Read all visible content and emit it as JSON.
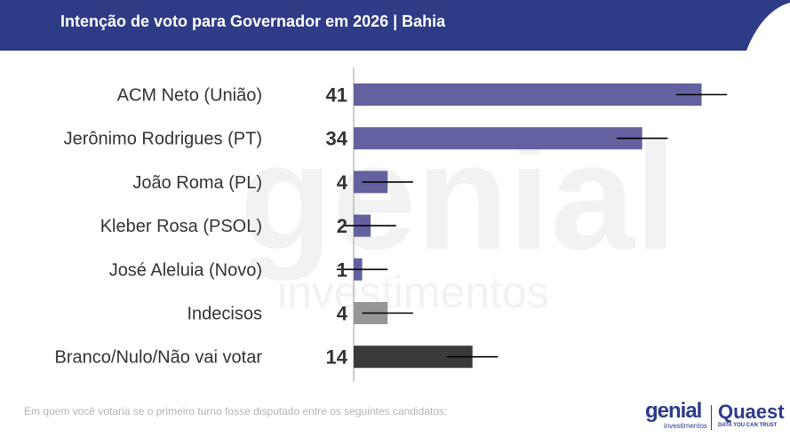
{
  "header": {
    "title": "Intenção de voto para Governador em 2026 | Bahia",
    "bg_color": "#2e3b86"
  },
  "watermark": {
    "line1": "genial",
    "line2": "investimentos"
  },
  "chart_data": {
    "type": "bar",
    "orientation": "horizontal",
    "categories": [
      "ACM Neto (União)",
      "Jerônimo Rodrigues (PT)",
      "João Roma (PL)",
      "Kleber Rosa (PSOL)",
      "José Aleluia (Novo)",
      "Indecisos",
      "Branco/Nulo/Não vai votar"
    ],
    "values": [
      41,
      34,
      4,
      2,
      1,
      4,
      14
    ],
    "data_labels": [
      "41",
      "34",
      "4",
      "2",
      "1",
      "4",
      "14"
    ],
    "error_margin": 3,
    "colors": [
      "#6461a0",
      "#6461a0",
      "#6461a0",
      "#6461a0",
      "#6461a0",
      "#969696",
      "#3a3a3a"
    ],
    "xlim": [
      0,
      42
    ]
  },
  "footnote": "Em quem você votaria se o primeiro turno fosse disputado entre os seguintes candidatos:",
  "logos": {
    "genial": "genial",
    "genial_sub": "investimentos",
    "quaest": "Quaest",
    "quaest_sub": "DATA YOU CAN TRUST"
  }
}
